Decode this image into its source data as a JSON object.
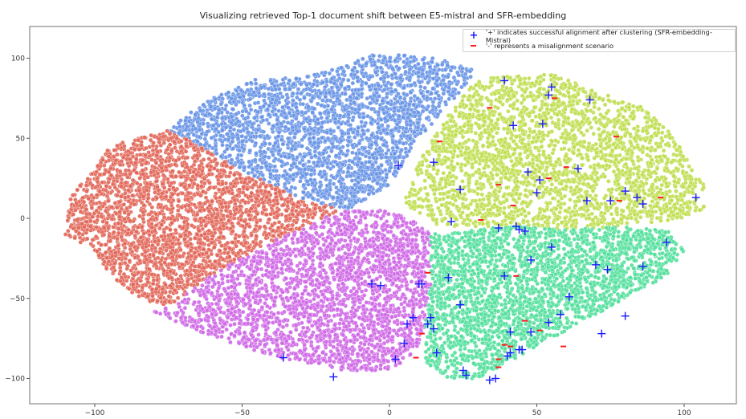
{
  "chart_data": {
    "type": "scatter",
    "title": "Visualizing retrieved Top-1 document shift between E5-mistral and SFR-embedding",
    "xlabel": "",
    "ylabel": "",
    "xlim": [
      -120,
      120
    ],
    "ylim": [
      -117,
      118
    ],
    "xticks": [
      -100,
      -50,
      0,
      50,
      100
    ],
    "yticks": [
      100,
      50,
      0,
      -50,
      -100
    ],
    "grid": false,
    "legend_position": "upper right",
    "legend": [
      {
        "marker": "+",
        "color": "#1a1aff",
        "label": "'+' indicates successful alignment after clustering (SFR-embedding-Mistral)"
      },
      {
        "marker": "-",
        "color": "#ff1a1a",
        "label": "'-' represents a misalignment scenario"
      }
    ],
    "clusters": [
      {
        "name": "cluster-blue",
        "color": "#6a96e6",
        "polygon": [
          [
            -75,
            55
          ],
          [
            -70,
            63
          ],
          [
            -60,
            75
          ],
          [
            -45,
            87
          ],
          [
            -30,
            88
          ],
          [
            -15,
            95
          ],
          [
            -5,
            103
          ],
          [
            5,
            102
          ],
          [
            15,
            100
          ],
          [
            28,
            95
          ],
          [
            28,
            85
          ],
          [
            20,
            70
          ],
          [
            8,
            45
          ],
          [
            0,
            20
          ],
          [
            -15,
            5
          ],
          [
            -30,
            12
          ],
          [
            -50,
            30
          ],
          [
            -62,
            43
          ]
        ]
      },
      {
        "name": "cluster-lime",
        "color": "#c0de52",
        "polygon": [
          [
            28,
            85
          ],
          [
            35,
            88
          ],
          [
            55,
            90
          ],
          [
            70,
            80
          ],
          [
            85,
            70
          ],
          [
            95,
            55
          ],
          [
            100,
            40
          ],
          [
            107,
            20
          ],
          [
            107,
            5
          ],
          [
            100,
            0
          ],
          [
            80,
            -5
          ],
          [
            60,
            -7
          ],
          [
            40,
            -5
          ],
          [
            15,
            -5
          ],
          [
            5,
            10
          ],
          [
            10,
            35
          ],
          [
            20,
            65
          ]
        ]
      },
      {
        "name": "cluster-red",
        "color": "#e2685a",
        "polygon": [
          [
            -75,
            55
          ],
          [
            -62,
            43
          ],
          [
            -50,
            30
          ],
          [
            -30,
            12
          ],
          [
            -15,
            5
          ],
          [
            -20,
            2
          ],
          [
            -40,
            -15
          ],
          [
            -60,
            -35
          ],
          [
            -75,
            -55
          ],
          [
            -85,
            -50
          ],
          [
            -95,
            -35
          ],
          [
            -100,
            -20
          ],
          [
            -110,
            -10
          ],
          [
            -108,
            15
          ],
          [
            -100,
            30
          ],
          [
            -95,
            45
          ],
          [
            -85,
            50
          ]
        ]
      },
      {
        "name": "cluster-magenta",
        "color": "#cf6ae6",
        "polygon": [
          [
            -15,
            5
          ],
          [
            0,
            5
          ],
          [
            10,
            -3
          ],
          [
            14,
            -10
          ],
          [
            14,
            -40
          ],
          [
            12,
            -70
          ],
          [
            8,
            -85
          ],
          [
            0,
            -95
          ],
          [
            -15,
            -95
          ],
          [
            -35,
            -88
          ],
          [
            -55,
            -78
          ],
          [
            -72,
            -65
          ],
          [
            -80,
            -58
          ],
          [
            -75,
            -55
          ],
          [
            -60,
            -35
          ],
          [
            -40,
            -15
          ],
          [
            -20,
            2
          ]
        ]
      },
      {
        "name": "cluster-green",
        "color": "#55e09d",
        "polygon": [
          [
            14,
            -10
          ],
          [
            40,
            -5
          ],
          [
            60,
            -7
          ],
          [
            80,
            -5
          ],
          [
            95,
            -8
          ],
          [
            100,
            -20
          ],
          [
            95,
            -35
          ],
          [
            80,
            -50
          ],
          [
            60,
            -70
          ],
          [
            45,
            -85
          ],
          [
            30,
            -100
          ],
          [
            20,
            -100
          ],
          [
            12,
            -90
          ],
          [
            12,
            -70
          ],
          [
            14,
            -40
          ]
        ]
      }
    ],
    "points_per_cluster": 2600,
    "aligned_plus_markers": [
      [
        39,
        86
      ],
      [
        55,
        82
      ],
      [
        54,
        77
      ],
      [
        68,
        74
      ],
      [
        42,
        58
      ],
      [
        52,
        59
      ],
      [
        3,
        33
      ],
      [
        15,
        35
      ],
      [
        -19,
        -99
      ],
      [
        24,
        18
      ],
      [
        47,
        29
      ],
      [
        51,
        24
      ],
      [
        64,
        31
      ],
      [
        67,
        11
      ],
      [
        50,
        16
      ],
      [
        80,
        17
      ],
      [
        75,
        11
      ],
      [
        84,
        13
      ],
      [
        86,
        9
      ],
      [
        104,
        13
      ],
      [
        43,
        -5
      ],
      [
        37,
        -6
      ],
      [
        44,
        -7
      ],
      [
        46,
        -8
      ],
      [
        21,
        -2
      ],
      [
        55,
        -18
      ],
      [
        48,
        -26
      ],
      [
        39,
        -36
      ],
      [
        61,
        -49
      ],
      [
        20,
        -37
      ],
      [
        24,
        -54
      ],
      [
        70,
        -29
      ],
      [
        74,
        -32
      ],
      [
        86,
        -30
      ],
      [
        94,
        -15
      ],
      [
        80,
        -61
      ],
      [
        72,
        -72
      ],
      [
        41,
        -71
      ],
      [
        48,
        -71
      ],
      [
        54,
        -65
      ],
      [
        58,
        -60
      ],
      [
        44,
        -82
      ],
      [
        45,
        -82
      ],
      [
        40,
        -86
      ],
      [
        41,
        -84
      ],
      [
        36,
        -100
      ],
      [
        34,
        -101
      ],
      [
        26,
        -98
      ],
      [
        25,
        -95
      ],
      [
        -6,
        -41
      ],
      [
        -3,
        -42
      ],
      [
        10,
        -41
      ],
      [
        11,
        -41
      ],
      [
        8,
        -62
      ],
      [
        6,
        -66
      ],
      [
        5,
        -78
      ],
      [
        2,
        -88
      ],
      [
        14,
        -62
      ],
      [
        13,
        -66
      ],
      [
        15,
        -69
      ],
      [
        16,
        -84
      ],
      [
        -36,
        -87
      ]
    ],
    "misaligned_minus_markers": [
      [
        34,
        69
      ],
      [
        56,
        75
      ],
      [
        17,
        48
      ],
      [
        37,
        21
      ],
      [
        54,
        25
      ],
      [
        60,
        32
      ],
      [
        42,
        8
      ],
      [
        31,
        -1
      ],
      [
        77,
        51
      ],
      [
        78,
        11
      ],
      [
        92,
        13
      ],
      [
        13,
        -34
      ],
      [
        11,
        -72
      ],
      [
        9,
        -87
      ],
      [
        43,
        -36
      ],
      [
        37,
        -88
      ],
      [
        51,
        -70
      ],
      [
        59,
        -80
      ],
      [
        46,
        -64
      ],
      [
        37,
        -93
      ],
      [
        41,
        -80
      ],
      [
        39,
        -79
      ]
    ]
  },
  "axes": {
    "x_tick_labels": [
      "−100",
      "−50",
      "0",
      "50",
      "100"
    ],
    "y_tick_labels": [
      "100",
      "50",
      "0",
      "−50",
      "−100"
    ]
  },
  "legend": {
    "plus_symbol": "+",
    "plus_label": "'+' indicates successful alignment after clustering (SFR-embedding-Mistral)",
    "minus_label": "'-' represents a misalignment scenario"
  }
}
